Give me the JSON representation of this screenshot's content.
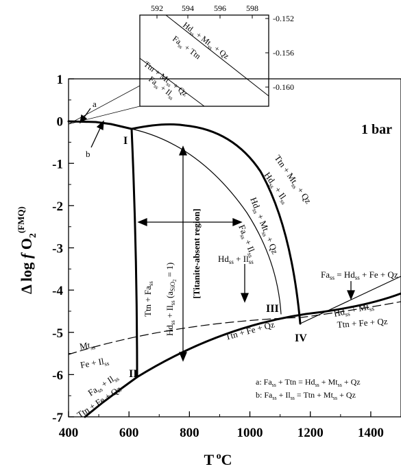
{
  "diagram": {
    "pressure_label": "1 bar",
    "x_axis": {
      "label_main": "T",
      "label_sup": "o",
      "label_end": "C",
      "min": 400,
      "max": 1500,
      "ticks": [
        400,
        600,
        800,
        1000,
        1200,
        1400
      ],
      "tick_labels": [
        "400",
        "600",
        "800",
        "1000",
        "1200",
        "1400"
      ]
    },
    "y_axis": {
      "label_prefix": "Δ log ",
      "label_f": "f",
      "label_O": " O",
      "label_sub": "2",
      "label_sup": "(FMQ)",
      "min": -7,
      "max": 1,
      "ticks": [
        1,
        0,
        -1,
        -2,
        -3,
        -4,
        -5,
        -6,
        -7
      ],
      "tick_labels": [
        "1",
        "0",
        "-1",
        "-2",
        "-3",
        "-4",
        "-5",
        "-6",
        "-7"
      ]
    },
    "invariant_points": [
      "I",
      "II",
      "III",
      "IV"
    ],
    "letter_labels": [
      "a",
      "b"
    ],
    "region_label": "[Titanite-absent region]",
    "reactions": {
      "ttn_fass": "Ttn + Fa",
      "hdss_ilss": "Hd",
      "asio2": " (a",
      "asio2_eq": " = 1)",
      "top_curve_top": "Ttn + Mt",
      "top_curve_bottom": "Hd",
      "mid_curve_top": "Hd",
      "mid_curve_bottom": "Fa",
      "fass_ilss_iii": "Hd",
      "ttn_fe_qz": "Ttn + Fe + Qz",
      "fass_ilss_ii": "Fa",
      "ttn_fe_qz_ii": "Ttn + Fe + Qz",
      "right_upper": "Fa",
      "right_mid": "Hd",
      "right_low": "Ttn + Fe + Qz",
      "mtss": "Mt",
      "fe_ilss": "Fe + Il"
    },
    "legend": {
      "a_text": "a: Fa",
      "b_text": "b: Fa"
    },
    "inset": {
      "x_ticks": [
        "592",
        "594",
        "596",
        "598"
      ],
      "y_ticks": [
        "-0.152",
        "-0.156",
        "-0.160"
      ],
      "label1": "Hd",
      "label2": "Fa",
      "label3": "Ttn + Mt",
      "label4": "Fa"
    }
  }
}
